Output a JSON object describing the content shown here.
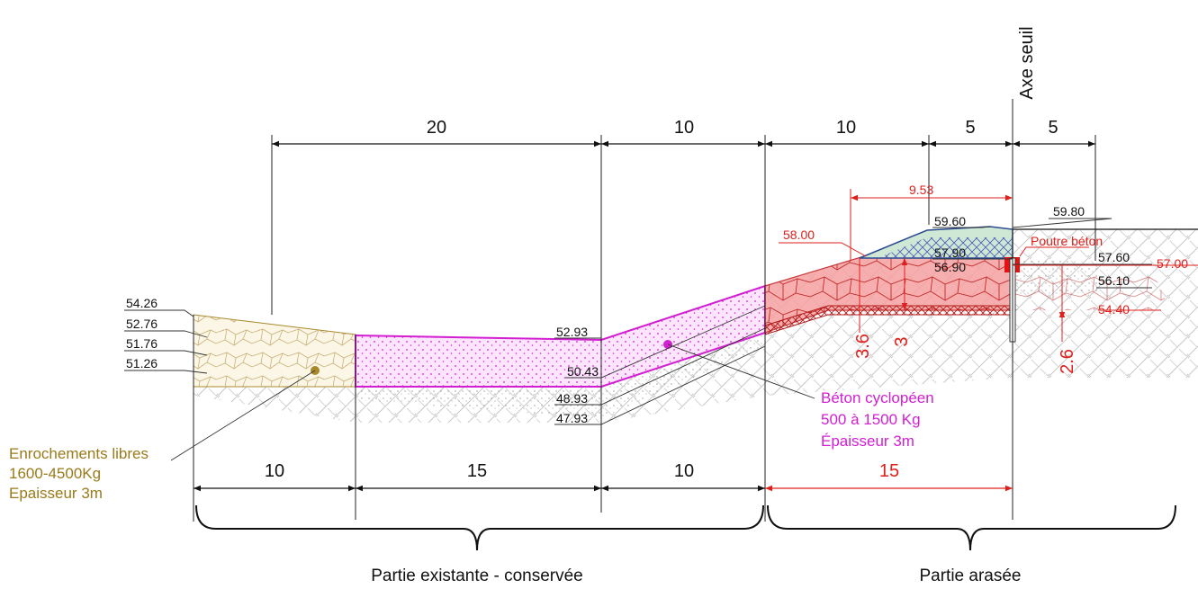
{
  "axis_label": "Axe seuil",
  "top_dimensions": [
    "20",
    "10",
    "10",
    "5",
    "5"
  ],
  "bottom_dimensions": [
    "10",
    "15",
    "10",
    "15"
  ],
  "levels_left": [
    "54.26",
    "52.76",
    "51.76",
    "51.26"
  ],
  "levels_middle": [
    "52.93",
    "50.43",
    "48.93",
    "47.93"
  ],
  "levels_right": [
    "59.60",
    "57.90",
    "56.90",
    "59.80",
    "57.60",
    "56.10"
  ],
  "red_levels": [
    "58.00",
    "57.00",
    "54.40",
    "9.53"
  ],
  "red_dimensions": [
    "3.6",
    "3",
    "2.6"
  ],
  "beam_label": "Poutre béton",
  "annotations": {
    "riprap": [
      "Enrochements libres",
      "1600-4500Kg",
      "Epaisseur 3m"
    ],
    "concrete": [
      "Béton cyclopéen",
      "500 à 1500 Kg",
      "Épaisseur 3m"
    ]
  },
  "sections": [
    "Partie existante - conservée",
    "Partie arasée"
  ]
}
